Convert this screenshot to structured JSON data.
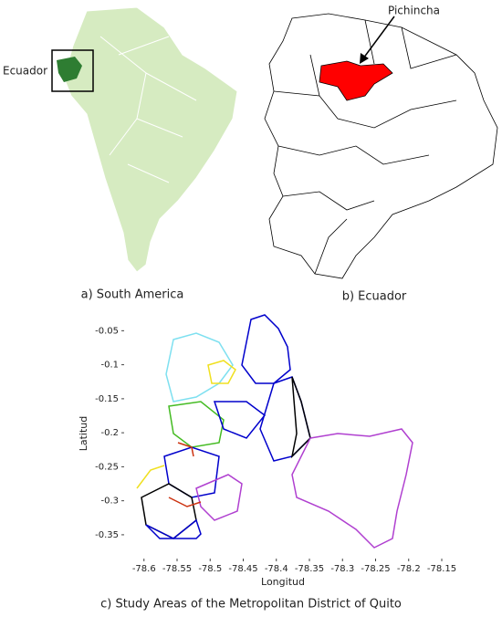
{
  "panel_a": {
    "label": "Ecuador",
    "caption": "a) South America"
  },
  "panel_b": {
    "label": "Pichincha",
    "caption": "b) Ecuador"
  },
  "panel_c": {
    "caption": "c) Study Areas of the Metropolitan District of Quito",
    "xlabel": "Longitud",
    "ylabel": "Latitud",
    "xlim": [
      -78.63,
      -78.15
    ],
    "ylim": [
      -0.385,
      -0.02
    ],
    "xticks": [
      -78.6,
      -78.55,
      -78.5,
      -78.45,
      -78.4,
      -78.35,
      -78.3,
      -78.25,
      -78.2,
      -78.15
    ],
    "yticks": [
      -0.35,
      -0.3,
      -0.25,
      -0.2,
      -0.15,
      -0.1,
      -0.05
    ]
  }
}
